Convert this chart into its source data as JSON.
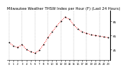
{
  "title": "Milwaukee Weather THSW Index per Hour (F) (Last 24 Hours)",
  "hours": [
    0,
    1,
    2,
    3,
    4,
    5,
    6,
    7,
    8,
    9,
    10,
    11,
    12,
    13,
    14,
    15,
    16,
    17,
    18,
    19,
    20,
    21,
    22,
    23
  ],
  "values": [
    55,
    50,
    48,
    52,
    45,
    42,
    40,
    44,
    52,
    62,
    70,
    78,
    85,
    91,
    88,
    80,
    74,
    70,
    68,
    66,
    65,
    64,
    63,
    62
  ],
  "line_color": "#ff0000",
  "marker_color": "#000000",
  "bg_color": "#ffffff",
  "grid_color": "#999999",
  "title_color": "#000000",
  "ylim": [
    30,
    100
  ],
  "ytick_values": [
    45,
    65,
    85
  ],
  "ytick_labels": [
    "45",
    "65",
    "85"
  ],
  "title_fontsize": 3.8,
  "tick_fontsize": 3.0,
  "marker_size": 1.0,
  "line_width": 0.7
}
